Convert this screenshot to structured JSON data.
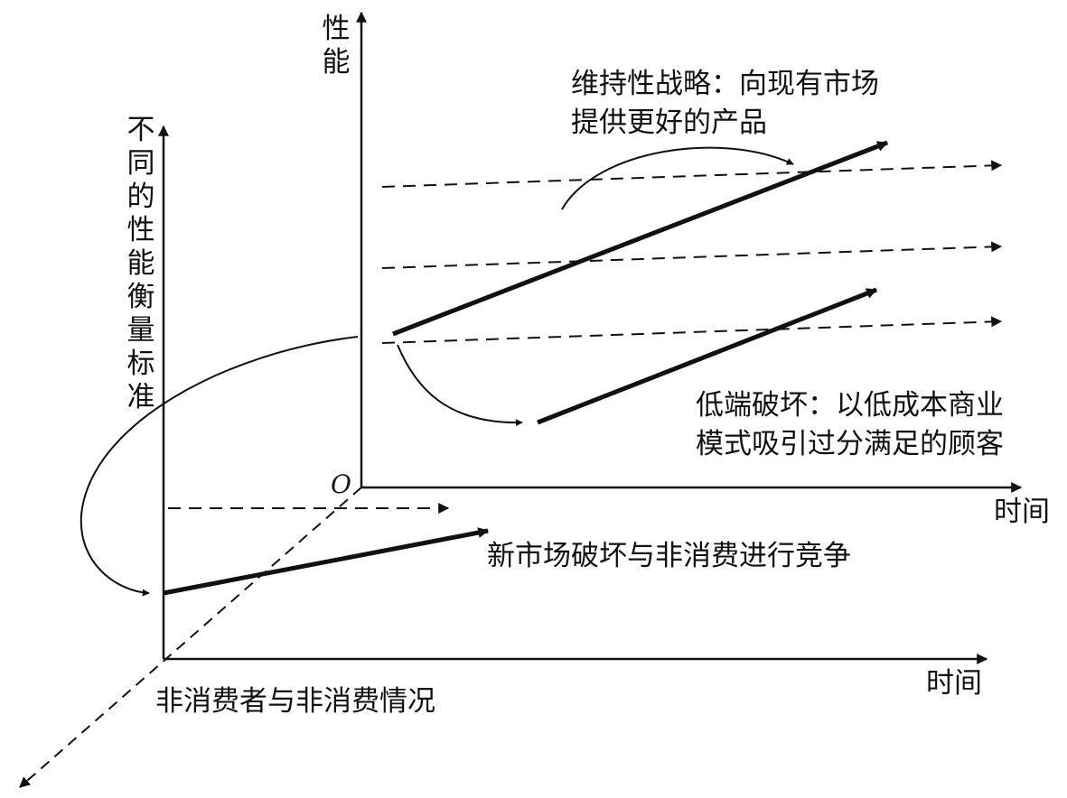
{
  "back_axis": {
    "y_label": "性能",
    "x_label": "时间",
    "origin_label": "O"
  },
  "front_axis": {
    "y_label": "不同的性能衡量标准",
    "x_label": "时间",
    "depth_label": "非消费者与非消费情况"
  },
  "annotations": {
    "sustaining": "维持性战略：向现有市场\n提供更好的产品",
    "low_end": "低端破坏：以低成本商业\n模式吸引过分满足的顾客",
    "new_market": "新市场破坏与非消费进行竞争"
  },
  "colors": {
    "line": "#111111",
    "background": "#ffffff"
  }
}
